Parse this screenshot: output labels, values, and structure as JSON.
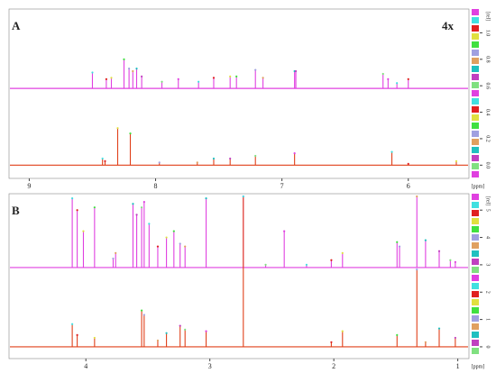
{
  "chart_data": [
    {
      "type": "spectrum",
      "label": "A",
      "annotation": "4x",
      "xlabel": "[ppm]",
      "ylabel": "[rel]",
      "xlim": [
        9.16,
        5.52
      ],
      "xticks": [
        9,
        8,
        7,
        6
      ],
      "ylim": [
        -0.1,
        1.18
      ],
      "yticks": [
        {
          "value": 0,
          "label": "0.0"
        },
        0.2,
        0.4,
        0.6,
        0.8,
        {
          "value": 1,
          "label": "1.0"
        }
      ],
      "series": [
        {
          "color": "#e040e0",
          "baseline": 0.58,
          "x": [
            8.5,
            8.39,
            8.35,
            8.25,
            8.21,
            8.18,
            8.15,
            8.11,
            7.95,
            7.82,
            7.66,
            7.54,
            7.41,
            7.36,
            7.21,
            7.15,
            6.9,
            6.89,
            6.2,
            6.16,
            6.09,
            6.0
          ],
          "values": [
            0.7,
            0.65,
            0.66,
            0.8,
            0.73,
            0.71,
            0.73,
            0.67,
            0.63,
            0.65,
            0.63,
            0.66,
            0.67,
            0.67,
            0.72,
            0.66,
            0.71,
            0.71,
            0.69,
            0.65,
            0.62,
            0.65
          ]
        },
        {
          "color": "#e0401a",
          "baseline": 0,
          "x": [
            8.42,
            8.4,
            8.3,
            8.2,
            7.97,
            7.67,
            7.54,
            7.41,
            7.21,
            6.9,
            6.13,
            6.0,
            5.62
          ],
          "values": [
            0.05,
            0.03,
            0.28,
            0.24,
            0.02,
            0.02,
            0.05,
            0.05,
            0.07,
            0.09,
            0.1,
            0.01,
            0.03
          ]
        }
      ]
    },
    {
      "type": "spectrum",
      "label": "B",
      "xlabel": "[ppm]",
      "ylabel": "[rel]",
      "xlim": [
        4.62,
        0.91
      ],
      "xticks": [
        4,
        3,
        2,
        1
      ],
      "ylim": [
        -0.43,
        5.6
      ],
      "yticks": [
        0,
        1,
        2,
        3,
        4,
        5
      ],
      "series": [
        {
          "color": "#e040e0",
          "baseline": 2.9,
          "x": [
            4.11,
            4.07,
            4.02,
            3.93,
            3.78,
            3.76,
            3.62,
            3.59,
            3.55,
            3.53,
            3.49,
            3.42,
            3.35,
            3.29,
            3.24,
            3.2,
            3.03,
            2.73,
            2.55,
            2.4,
            2.22,
            2.02,
            1.93,
            1.49,
            1.47,
            1.33,
            1.26,
            1.15,
            1.06,
            1.02
          ],
          "values": [
            5.43,
            5.0,
            4.23,
            5.1,
            3.23,
            3.43,
            5.23,
            4.83,
            5.1,
            5.3,
            4.5,
            3.67,
            4.0,
            4.23,
            3.77,
            3.67,
            5.43,
            5.5,
            3.0,
            4.23,
            3.0,
            3.17,
            3.43,
            3.83,
            3.67,
            5.5,
            3.9,
            3.5,
            3.17,
            3.1
          ]
        },
        {
          "color": "#e0401a",
          "baseline": 0,
          "x": [
            4.11,
            4.07,
            3.93,
            3.55,
            3.53,
            3.42,
            3.35,
            3.24,
            3.2,
            3.03,
            2.73,
            2.02,
            1.93,
            1.49,
            1.33,
            1.26,
            1.15,
            1.02
          ],
          "values": [
            0.83,
            0.43,
            0.33,
            1.33,
            1.17,
            0.23,
            0.5,
            0.77,
            0.63,
            0.57,
            5.5,
            0.17,
            0.57,
            0.43,
            2.83,
            0.17,
            0.67,
            0.33
          ]
        }
      ]
    }
  ]
}
